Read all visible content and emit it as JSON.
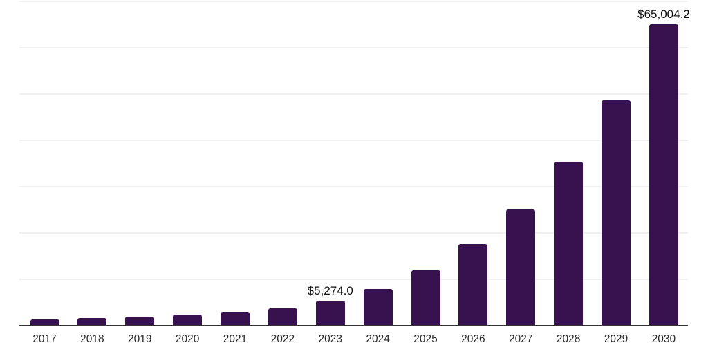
{
  "chart_data": {
    "type": "bar",
    "title": "",
    "xlabel": "",
    "ylabel": "",
    "legend": "none",
    "grid": "horizontal",
    "categories": [
      "2017",
      "2018",
      "2019",
      "2020",
      "2021",
      "2022",
      "2023",
      "2024",
      "2025",
      "2026",
      "2027",
      "2028",
      "2029",
      "2030"
    ],
    "values": [
      1250,
      1550,
      1900,
      2250,
      2850,
      3700,
      5274.0,
      7900,
      11900,
      17600,
      25100,
      35300,
      48600,
      65004.2
    ],
    "value_labels": {
      "2023": "$5,274.0",
      "2030": "$65,004.2"
    },
    "ylim": [
      0,
      70000
    ],
    "grid_step": 10000,
    "colors": {
      "bar": "#38124e",
      "axis_line": "#333333",
      "gridline": "#f0f0f1",
      "tick_label": "#2b2b2b",
      "value_label": "#111111",
      "background": "#ffffff"
    }
  }
}
